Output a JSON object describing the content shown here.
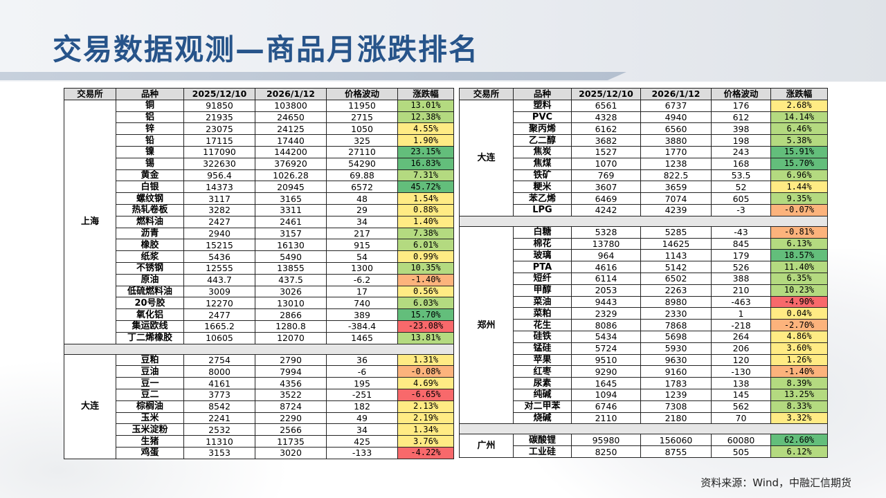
{
  "title": "交易数据观测—商品月涨跌排名",
  "source": "资料来源：Wind，中融汇信期货",
  "headers": [
    "交易所",
    "品种",
    "2025/12/10",
    "2026/1/12",
    "价格波动",
    "涨跌幅"
  ],
  "colors": {
    "strong_green": "#63be7b",
    "light_green": "#b4da80",
    "yellow": "#ffeb84",
    "orange": "#fcb37c",
    "red": "#f8696b"
  },
  "left_groups": [
    {
      "exchange": "上海",
      "rows": [
        [
          "铜",
          "91850",
          "103800",
          "11950",
          "13.01%"
        ],
        [
          "铝",
          "21935",
          "24650",
          "2715",
          "12.38%"
        ],
        [
          "锌",
          "23075",
          "24125",
          "1050",
          "4.55%"
        ],
        [
          "铅",
          "17115",
          "17440",
          "325",
          "1.90%"
        ],
        [
          "镍",
          "117090",
          "144200",
          "27110",
          "23.15%"
        ],
        [
          "锡",
          "322630",
          "376920",
          "54290",
          "16.83%"
        ],
        [
          "黄金",
          "956.4",
          "1026.28",
          "69.88",
          "7.31%"
        ],
        [
          "白银",
          "14373",
          "20945",
          "6572",
          "45.72%"
        ],
        [
          "螺纹钢",
          "3117",
          "3165",
          "48",
          "1.54%"
        ],
        [
          "热轧卷板",
          "3282",
          "3311",
          "29",
          "0.88%"
        ],
        [
          "燃料油",
          "2427",
          "2461",
          "34",
          "1.40%"
        ],
        [
          "沥青",
          "2940",
          "3157",
          "217",
          "7.38%"
        ],
        [
          "橡胶",
          "15215",
          "16130",
          "915",
          "6.01%"
        ],
        [
          "纸浆",
          "5436",
          "5490",
          "54",
          "0.99%"
        ],
        [
          "不锈钢",
          "12555",
          "13855",
          "1300",
          "10.35%"
        ],
        [
          "原油",
          "443.7",
          "437.5",
          "-6.2",
          "-1.40%"
        ],
        [
          "低硫燃料油",
          "3009",
          "3026",
          "17",
          "0.56%"
        ],
        [
          "20号胶",
          "12270",
          "13010",
          "740",
          "6.03%"
        ],
        [
          "氧化铝",
          "2477",
          "2866",
          "389",
          "15.70%"
        ],
        [
          "集运欧线",
          "1665.2",
          "1280.8",
          "-384.4",
          "-23.08%"
        ],
        [
          "丁二烯橡胶",
          "10605",
          "12070",
          "1465",
          "13.81%"
        ]
      ]
    },
    {
      "exchange": "大连",
      "rows": [
        [
          "豆粕",
          "2754",
          "2790",
          "36",
          "1.31%"
        ],
        [
          "豆油",
          "8000",
          "7994",
          "-6",
          "-0.08%"
        ],
        [
          "豆一",
          "4161",
          "4356",
          "195",
          "4.69%"
        ],
        [
          "豆二",
          "3773",
          "3522",
          "-251",
          "-6.65%"
        ],
        [
          "棕榈油",
          "8542",
          "8724",
          "182",
          "2.13%"
        ],
        [
          "玉米",
          "2241",
          "2290",
          "49",
          "2.19%"
        ],
        [
          "玉米淀粉",
          "2532",
          "2566",
          "34",
          "1.34%"
        ],
        [
          "生猪",
          "11310",
          "11735",
          "425",
          "3.76%"
        ],
        [
          "鸡蛋",
          "3153",
          "3020",
          "-133",
          "-4.22%"
        ]
      ]
    }
  ],
  "right_groups": [
    {
      "exchange": "大连",
      "rows": [
        [
          "塑料",
          "6561",
          "6737",
          "176",
          "2.68%"
        ],
        [
          "PVC",
          "4328",
          "4940",
          "612",
          "14.14%"
        ],
        [
          "聚丙烯",
          "6162",
          "6560",
          "398",
          "6.46%"
        ],
        [
          "乙二醇",
          "3682",
          "3880",
          "198",
          "5.38%"
        ],
        [
          "焦炭",
          "1527",
          "1770",
          "243",
          "15.91%"
        ],
        [
          "焦煤",
          "1070",
          "1238",
          "168",
          "15.70%"
        ],
        [
          "铁矿",
          "769",
          "822.5",
          "53.5",
          "6.96%"
        ],
        [
          "粳米",
          "3607",
          "3659",
          "52",
          "1.44%"
        ],
        [
          "苯乙烯",
          "6469",
          "7074",
          "605",
          "9.35%"
        ],
        [
          "LPG",
          "4242",
          "4239",
          "-3",
          "-0.07%"
        ]
      ]
    },
    {
      "exchange": "郑州",
      "rows": [
        [
          "白糖",
          "5328",
          "5285",
          "-43",
          "-0.81%"
        ],
        [
          "棉花",
          "13780",
          "14625",
          "845",
          "6.13%"
        ],
        [
          "玻璃",
          "964",
          "1143",
          "179",
          "18.57%"
        ],
        [
          "PTA",
          "4616",
          "5142",
          "526",
          "11.40%"
        ],
        [
          "短纤",
          "6114",
          "6502",
          "388",
          "6.35%"
        ],
        [
          "甲醇",
          "2053",
          "2263",
          "210",
          "10.23%"
        ],
        [
          "菜油",
          "9443",
          "8980",
          "-463",
          "-4.90%"
        ],
        [
          "菜粕",
          "2329",
          "2330",
          "1",
          "0.04%"
        ],
        [
          "花生",
          "8086",
          "7868",
          "-218",
          "-2.70%"
        ],
        [
          "硅铁",
          "5434",
          "5698",
          "264",
          "4.86%"
        ],
        [
          "锰硅",
          "5724",
          "5930",
          "206",
          "3.60%"
        ],
        [
          "苹果",
          "9510",
          "9630",
          "120",
          "1.26%"
        ],
        [
          "红枣",
          "9290",
          "9160",
          "-130",
          "-1.40%"
        ],
        [
          "尿素",
          "1645",
          "1783",
          "138",
          "8.39%"
        ],
        [
          "纯碱",
          "1094",
          "1239",
          "145",
          "13.25%"
        ],
        [
          "对二甲苯",
          "6746",
          "7308",
          "562",
          "8.33%"
        ],
        [
          "烧碱",
          "2110",
          "2180",
          "70",
          "3.32%"
        ]
      ]
    },
    {
      "exchange": "广州",
      "rows": [
        [
          "碳酸锂",
          "95980",
          "156060",
          "60080",
          "62.60%"
        ],
        [
          "工业硅",
          "8250",
          "8755",
          "505",
          "6.12%"
        ]
      ]
    }
  ]
}
